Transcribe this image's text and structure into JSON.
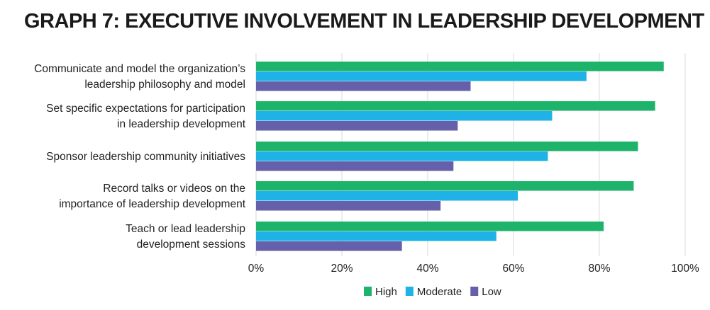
{
  "chart_data": {
    "type": "bar",
    "orientation": "horizontal",
    "title": "GRAPH 7: EXECUTIVE INVOLVEMENT IN LEADERSHIP DEVELOPMENT",
    "categories": [
      [
        "Communicate and model the organization’s",
        "leadership philosophy and model"
      ],
      [
        "Set specific expectations for participation",
        "in leadership development"
      ],
      [
        "Sponsor leadership community initiatives"
      ],
      [
        "Record talks or videos on the",
        "importance of leadership development"
      ],
      [
        "Teach or lead leadership",
        "development sessions"
      ]
    ],
    "series": [
      {
        "name": "High",
        "color": "#1db36b",
        "values": [
          95,
          93,
          89,
          88,
          81
        ]
      },
      {
        "name": "Moderate",
        "color": "#1fb2e6",
        "values": [
          77,
          69,
          68,
          61,
          56
        ]
      },
      {
        "name": "Low",
        "color": "#6660ab",
        "values": [
          50,
          47,
          46,
          43,
          34
        ]
      }
    ],
    "xlim": [
      0,
      100
    ],
    "xticks": [
      "0%",
      "20%",
      "40%",
      "60%",
      "80%",
      "100%"
    ],
    "grid": true,
    "legend": "bottom"
  }
}
